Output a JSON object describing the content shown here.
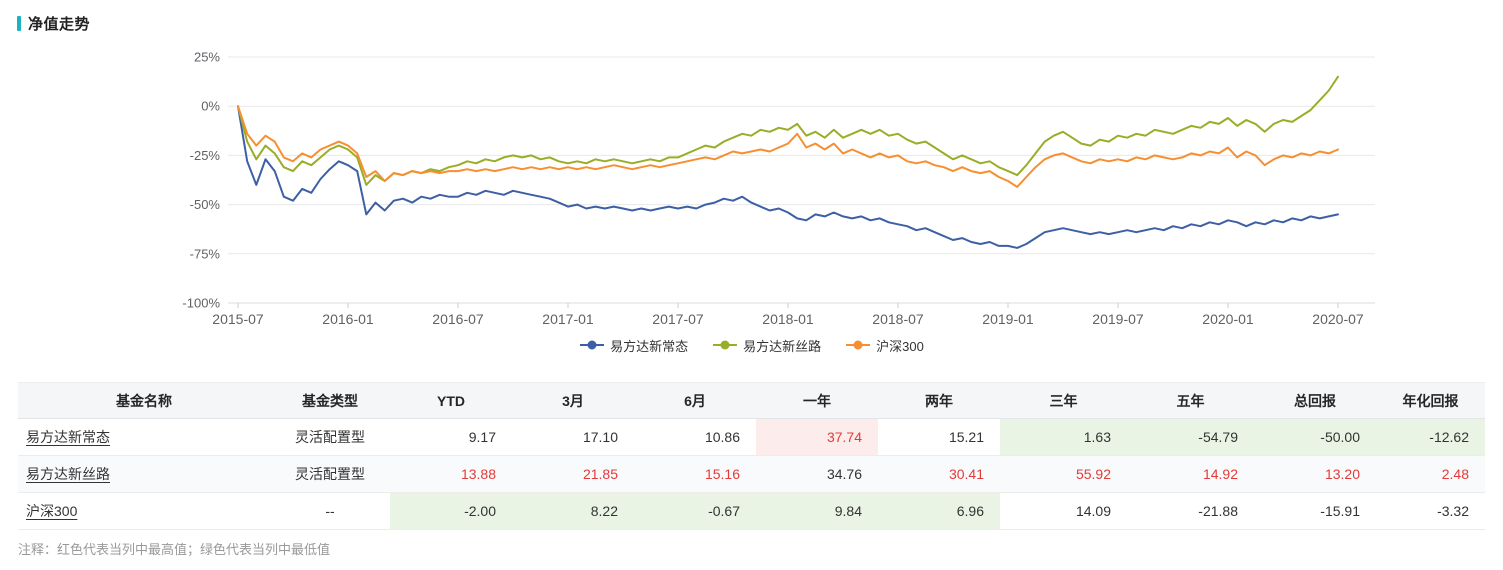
{
  "section": {
    "title": "净值走势"
  },
  "note": "注释：红色代表当列中最高值；绿色代表当列中最低值",
  "colors": {
    "accent": "#1ab3c0",
    "grid_line": "#e8e8e8",
    "axis_text": "#5e6266",
    "max_bg": "#fdecec",
    "max_text": "#e23b3b",
    "min_bg": "#e9f4e5"
  },
  "chart_data": {
    "type": "line",
    "title": "净值走势",
    "grid": "horizontal-only",
    "legend_position": "bottom-center",
    "x_start": "2015-07",
    "x_end": "2020-07",
    "x_step_months": 0.5,
    "x_axis": {
      "tick_labels": [
        "2015-07",
        "2016-01",
        "2016-07",
        "2017-01",
        "2017-07",
        "2018-01",
        "2018-07",
        "2019-01",
        "2019-07",
        "2020-01",
        "2020-07"
      ]
    },
    "y_axis": {
      "unit": "%",
      "range": [
        -100,
        25
      ],
      "ticks": [
        25,
        0,
        -25,
        -50,
        -75,
        -100
      ],
      "tick_labels": [
        "25%",
        "0%",
        "-25%",
        "-50%",
        "-75%",
        "-100%"
      ]
    },
    "series": [
      {
        "name": "易方达新常态",
        "color": "#3d5fa5",
        "values": [
          0,
          -28,
          -40,
          -27,
          -33,
          -46,
          -48,
          -42,
          -44,
          -37,
          -32,
          -28,
          -30,
          -33,
          -55,
          -49,
          -53,
          -48,
          -47,
          -49,
          -46,
          -47,
          -45,
          -46,
          -46,
          -44,
          -45,
          -43,
          -44,
          -45,
          -43,
          -44,
          -45,
          -46,
          -47,
          -49,
          -51,
          -50,
          -52,
          -51,
          -52,
          -51,
          -52,
          -53,
          -52,
          -53,
          -52,
          -51,
          -52,
          -51,
          -52,
          -50,
          -49,
          -47,
          -48,
          -46,
          -49,
          -51,
          -53,
          -52,
          -54,
          -57,
          -58,
          -55,
          -56,
          -54,
          -56,
          -57,
          -56,
          -58,
          -57,
          -59,
          -60,
          -61,
          -63,
          -62,
          -64,
          -66,
          -68,
          -67,
          -69,
          -70,
          -69,
          -71,
          -71,
          -72,
          -70,
          -67,
          -64,
          -63,
          -62,
          -63,
          -64,
          -65,
          -64,
          -65,
          -64,
          -63,
          -64,
          -63,
          -62,
          -63,
          -61,
          -62,
          -60,
          -61,
          -59,
          -60,
          -58,
          -59,
          -61,
          -59,
          -60,
          -58,
          -59,
          -57,
          -58,
          -56,
          -57,
          -56,
          -55
        ]
      },
      {
        "name": "易方达新丝路",
        "color": "#99ad27",
        "values": [
          0,
          -18,
          -27,
          -20,
          -24,
          -31,
          -33,
          -28,
          -30,
          -26,
          -22,
          -20,
          -22,
          -26,
          -40,
          -35,
          -38,
          -34,
          -35,
          -33,
          -34,
          -32,
          -33,
          -31,
          -30,
          -28,
          -29,
          -27,
          -28,
          -26,
          -25,
          -26,
          -25,
          -27,
          -26,
          -28,
          -29,
          -28,
          -29,
          -27,
          -28,
          -27,
          -28,
          -29,
          -28,
          -27,
          -28,
          -26,
          -26,
          -24,
          -22,
          -20,
          -21,
          -18,
          -16,
          -14,
          -15,
          -12,
          -13,
          -11,
          -12,
          -9,
          -15,
          -13,
          -16,
          -12,
          -16,
          -14,
          -12,
          -14,
          -12,
          -15,
          -14,
          -17,
          -19,
          -18,
          -21,
          -24,
          -27,
          -25,
          -27,
          -29,
          -28,
          -31,
          -33,
          -35,
          -30,
          -24,
          -18,
          -15,
          -13,
          -16,
          -19,
          -20,
          -17,
          -18,
          -15,
          -16,
          -14,
          -15,
          -12,
          -13,
          -14,
          -12,
          -10,
          -11,
          -8,
          -9,
          -6,
          -10,
          -7,
          -9,
          -13,
          -9,
          -7,
          -8,
          -5,
          -2,
          3,
          8,
          15
        ]
      },
      {
        "name": "沪深300",
        "color": "#f78f31",
        "values": [
          0,
          -14,
          -20,
          -15,
          -18,
          -26,
          -28,
          -24,
          -26,
          -22,
          -20,
          -18,
          -20,
          -24,
          -36,
          -33,
          -38,
          -34,
          -35,
          -33,
          -34,
          -33,
          -34,
          -33,
          -33,
          -32,
          -33,
          -32,
          -33,
          -32,
          -31,
          -32,
          -31,
          -32,
          -31,
          -32,
          -31,
          -32,
          -31,
          -32,
          -31,
          -30,
          -31,
          -32,
          -31,
          -30,
          -31,
          -30,
          -29,
          -28,
          -27,
          -26,
          -27,
          -25,
          -23,
          -24,
          -23,
          -22,
          -23,
          -21,
          -19,
          -14,
          -21,
          -19,
          -22,
          -19,
          -24,
          -22,
          -24,
          -26,
          -24,
          -26,
          -25,
          -28,
          -29,
          -28,
          -30,
          -31,
          -33,
          -31,
          -33,
          -34,
          -33,
          -36,
          -38,
          -41,
          -36,
          -31,
          -27,
          -25,
          -24,
          -26,
          -28,
          -29,
          -27,
          -28,
          -27,
          -28,
          -26,
          -27,
          -25,
          -26,
          -27,
          -26,
          -24,
          -25,
          -23,
          -24,
          -21,
          -26,
          -23,
          -25,
          -30,
          -27,
          -25,
          -26,
          -24,
          -25,
          -23,
          -24,
          -22
        ]
      }
    ]
  },
  "table": {
    "columns": [
      "基金名称",
      "基金类型",
      "YTD",
      "3月",
      "6月",
      "一年",
      "两年",
      "三年",
      "五年",
      "总回报",
      "年化回报"
    ],
    "rows": [
      {
        "name": "易方达新常态",
        "type": "灵活配置型",
        "values": [
          "9.17",
          "17.10",
          "10.86",
          "37.74",
          "15.21",
          "1.63",
          "-54.79",
          "-50.00",
          "-12.62"
        ],
        "highlights": [
          "",
          "",
          "",
          "max",
          "",
          "min",
          "min",
          "min",
          "min"
        ]
      },
      {
        "name": "易方达新丝路",
        "type": "灵活配置型",
        "values": [
          "13.88",
          "21.85",
          "15.16",
          "34.76",
          "30.41",
          "55.92",
          "14.92",
          "13.20",
          "2.48"
        ],
        "highlights": [
          "max",
          "max",
          "max",
          "",
          "max",
          "max",
          "max",
          "max",
          "max"
        ]
      },
      {
        "name": "沪深300",
        "type": "--",
        "values": [
          "-2.00",
          "8.22",
          "-0.67",
          "9.84",
          "6.96",
          "14.09",
          "-21.88",
          "-15.91",
          "-3.32"
        ],
        "highlights": [
          "min",
          "min",
          "min",
          "min",
          "min",
          "",
          "",
          "",
          ""
        ]
      }
    ]
  }
}
